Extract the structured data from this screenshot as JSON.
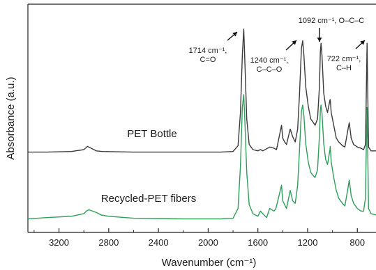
{
  "chart_data": {
    "type": "line",
    "title": "",
    "xlabel": "Wavenumber (cm⁻¹)",
    "ylabel": "Absorbance (a.u.)",
    "xlim": [
      3450,
      650
    ],
    "x_reversed": true,
    "x_ticks": [
      3200,
      2800,
      2400,
      2000,
      1600,
      1200,
      800
    ],
    "y_tick_labels": false,
    "grid": false,
    "series": [
      {
        "name": "PET Bottle",
        "color": "#3a3a3a",
        "points": [
          [
            3450,
            0.04
          ],
          [
            3300,
            0.04
          ],
          [
            3100,
            0.045
          ],
          [
            3000,
            0.06
          ],
          [
            2970,
            0.085
          ],
          [
            2940,
            0.07
          ],
          [
            2900,
            0.05
          ],
          [
            2850,
            0.045
          ],
          [
            2600,
            0.04
          ],
          [
            2200,
            0.04
          ],
          [
            1900,
            0.04
          ],
          [
            1800,
            0.045
          ],
          [
            1760,
            0.09
          ],
          [
            1740,
            0.35
          ],
          [
            1725,
            0.8
          ],
          [
            1714,
            1.0
          ],
          [
            1705,
            0.75
          ],
          [
            1690,
            0.3
          ],
          [
            1670,
            0.1
          ],
          [
            1640,
            0.06
          ],
          [
            1600,
            0.05
          ],
          [
            1580,
            0.06
          ],
          [
            1560,
            0.05
          ],
          [
            1505,
            0.08
          ],
          [
            1470,
            0.07
          ],
          [
            1450,
            0.06
          ],
          [
            1410,
            0.25
          ],
          [
            1400,
            0.15
          ],
          [
            1385,
            0.12
          ],
          [
            1370,
            0.1
          ],
          [
            1340,
            0.22
          ],
          [
            1320,
            0.16
          ],
          [
            1300,
            0.12
          ],
          [
            1280,
            0.22
          ],
          [
            1265,
            0.5
          ],
          [
            1250,
            0.85
          ],
          [
            1240,
            0.91
          ],
          [
            1230,
            0.8
          ],
          [
            1215,
            0.55
          ],
          [
            1195,
            0.4
          ],
          [
            1175,
            0.3
          ],
          [
            1160,
            0.28
          ],
          [
            1140,
            0.25
          ],
          [
            1120,
            0.3
          ],
          [
            1105,
            0.55
          ],
          [
            1098,
            0.82
          ],
          [
            1092,
            0.89
          ],
          [
            1085,
            0.8
          ],
          [
            1070,
            0.5
          ],
          [
            1055,
            0.4
          ],
          [
            1040,
            0.35
          ],
          [
            1020,
            0.45
          ],
          [
            1018,
            0.45
          ],
          [
            1010,
            0.35
          ],
          [
            990,
            0.25
          ],
          [
            970,
            0.15
          ],
          [
            950,
            0.12
          ],
          [
            920,
            0.09
          ],
          [
            900,
            0.08
          ],
          [
            875,
            0.22
          ],
          [
            865,
            0.27
          ],
          [
            850,
            0.15
          ],
          [
            830,
            0.1
          ],
          [
            800,
            0.08
          ],
          [
            770,
            0.07
          ],
          [
            750,
            0.06
          ],
          [
            735,
            0.1
          ],
          [
            728,
            0.5
          ],
          [
            722,
            0.89
          ],
          [
            716,
            0.5
          ],
          [
            710,
            0.08
          ],
          [
            690,
            0.05
          ],
          [
            650,
            0.05
          ]
        ]
      },
      {
        "name": "Recycled-PET fibers",
        "color": "#2e9e5a",
        "points": [
          [
            3450,
            0.04
          ],
          [
            3300,
            0.05
          ],
          [
            3100,
            0.06
          ],
          [
            3000,
            0.08
          ],
          [
            2980,
            0.1
          ],
          [
            2960,
            0.11
          ],
          [
            2930,
            0.1
          ],
          [
            2900,
            0.09
          ],
          [
            2860,
            0.07
          ],
          [
            2800,
            0.06
          ],
          [
            2600,
            0.045
          ],
          [
            2200,
            0.04
          ],
          [
            1900,
            0.04
          ],
          [
            1800,
            0.045
          ],
          [
            1760,
            0.12
          ],
          [
            1740,
            0.45
          ],
          [
            1725,
            0.9
          ],
          [
            1714,
            1.0
          ],
          [
            1705,
            0.8
          ],
          [
            1690,
            0.4
          ],
          [
            1670,
            0.15
          ],
          [
            1640,
            0.08
          ],
          [
            1600,
            0.06
          ],
          [
            1580,
            0.1
          ],
          [
            1560,
            0.08
          ],
          [
            1530,
            0.05
          ],
          [
            1505,
            0.12
          ],
          [
            1470,
            0.1
          ],
          [
            1455,
            0.12
          ],
          [
            1410,
            0.3
          ],
          [
            1400,
            0.18
          ],
          [
            1385,
            0.15
          ],
          [
            1370,
            0.12
          ],
          [
            1340,
            0.26
          ],
          [
            1320,
            0.18
          ],
          [
            1300,
            0.16
          ],
          [
            1280,
            0.3
          ],
          [
            1265,
            0.58
          ],
          [
            1250,
            0.87
          ],
          [
            1240,
            0.92
          ],
          [
            1230,
            0.84
          ],
          [
            1215,
            0.62
          ],
          [
            1195,
            0.48
          ],
          [
            1175,
            0.4
          ],
          [
            1160,
            0.38
          ],
          [
            1140,
            0.36
          ],
          [
            1120,
            0.42
          ],
          [
            1105,
            0.68
          ],
          [
            1098,
            0.88
          ],
          [
            1092,
            0.92
          ],
          [
            1085,
            0.86
          ],
          [
            1070,
            0.62
          ],
          [
            1055,
            0.5
          ],
          [
            1040,
            0.46
          ],
          [
            1020,
            0.58
          ],
          [
            1018,
            0.6
          ],
          [
            1010,
            0.48
          ],
          [
            990,
            0.36
          ],
          [
            970,
            0.26
          ],
          [
            950,
            0.2
          ],
          [
            920,
            0.16
          ],
          [
            900,
            0.14
          ],
          [
            875,
            0.28
          ],
          [
            865,
            0.34
          ],
          [
            850,
            0.22
          ],
          [
            830,
            0.16
          ],
          [
            800,
            0.12
          ],
          [
            770,
            0.1
          ],
          [
            750,
            0.1
          ],
          [
            735,
            0.2
          ],
          [
            728,
            0.6
          ],
          [
            722,
            0.9
          ],
          [
            716,
            0.55
          ],
          [
            710,
            0.12
          ],
          [
            690,
            0.08
          ],
          [
            650,
            0.07
          ]
        ]
      }
    ],
    "annotations": [
      {
        "id": "c_eq_o",
        "lines": [
          "1714 cm⁻¹,",
          "C=O"
        ],
        "arrow_to": [
          1714,
          "PET Bottle"
        ]
      },
      {
        "id": "c_c_o",
        "lines": [
          "1240 cm⁻¹,",
          "C–C–O"
        ],
        "arrow_to": [
          1240,
          "PET Bottle"
        ]
      },
      {
        "id": "o_c_c",
        "lines": [
          "1092 cm⁻¹, O–C–C"
        ],
        "arrow_to": [
          1092,
          "PET Bottle"
        ]
      },
      {
        "id": "c_h",
        "lines": [
          "722 cm⁻¹,",
          "C–H"
        ],
        "arrow_to": [
          722,
          "PET Bottle"
        ]
      }
    ]
  }
}
